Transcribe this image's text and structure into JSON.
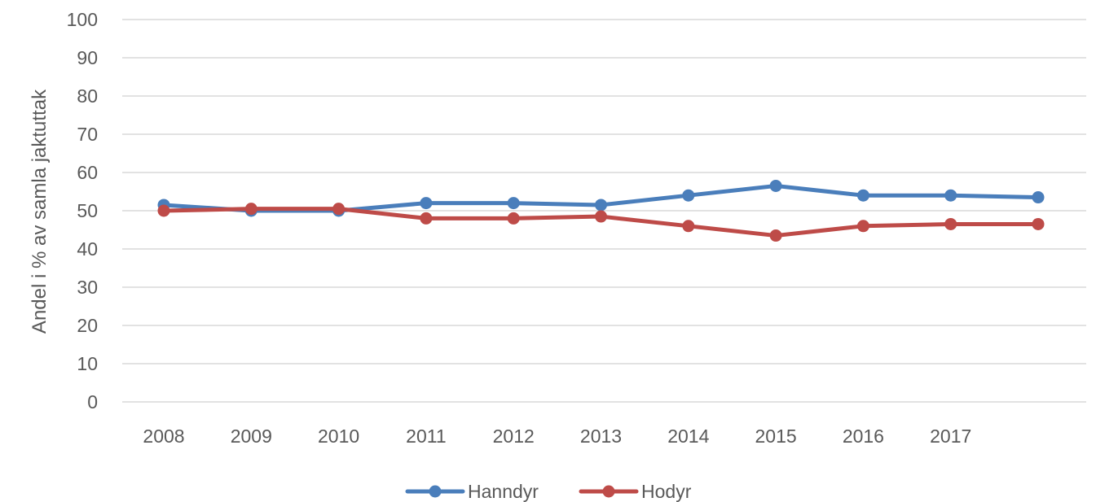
{
  "chart_data": {
    "type": "line",
    "title": "",
    "xlabel": "",
    "ylabel": "Andel i % av samla jaktuttak",
    "categories": [
      "2008",
      "2009",
      "2010",
      "2011",
      "2012",
      "2013",
      "2014",
      "2015",
      "2016",
      "2017",
      ""
    ],
    "ylim": [
      0,
      100
    ],
    "yticks": [
      0,
      10,
      20,
      30,
      40,
      50,
      60,
      70,
      80,
      90,
      100
    ],
    "grid": true,
    "legend_position": "bottom",
    "series": [
      {
        "name": "Hanndyr",
        "color": "#4a7ebb",
        "values": [
          51.5,
          50.0,
          50.0,
          52.0,
          52.0,
          51.5,
          54.0,
          56.5,
          54.0,
          54.0,
          53.5
        ]
      },
      {
        "name": "Hodyr",
        "color": "#be4b48",
        "values": [
          50.0,
          50.5,
          50.5,
          48.0,
          48.0,
          48.5,
          46.0,
          43.5,
          46.0,
          46.5,
          46.5
        ]
      }
    ]
  }
}
